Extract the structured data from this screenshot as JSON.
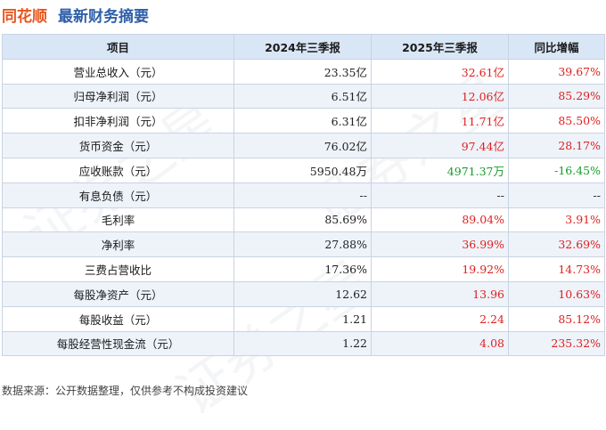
{
  "header": {
    "brand": "同花顺",
    "title": "最新财务摘要"
  },
  "table": {
    "columns": [
      "项目",
      "2024年三季报",
      "2025年三季报",
      "同比增幅"
    ],
    "rows": [
      {
        "item": "营业总收入（元）",
        "v2024": "23.35亿",
        "v2025": "32.61亿",
        "yoy": "39.67%",
        "trend": "up"
      },
      {
        "item": "归母净利润（元）",
        "v2024": "6.51亿",
        "v2025": "12.06亿",
        "yoy": "85.29%",
        "trend": "up"
      },
      {
        "item": "扣非净利润（元）",
        "v2024": "6.31亿",
        "v2025": "11.71亿",
        "yoy": "85.50%",
        "trend": "up"
      },
      {
        "item": "货币资金（元）",
        "v2024": "76.02亿",
        "v2025": "97.44亿",
        "yoy": "28.17%",
        "trend": "up"
      },
      {
        "item": "应收账款（元）",
        "v2024": "5950.48万",
        "v2025": "4971.37万",
        "yoy": "-16.45%",
        "trend": "down"
      },
      {
        "item": "有息负债（元）",
        "v2024": "--",
        "v2025": "--",
        "yoy": "--",
        "trend": "flat"
      },
      {
        "item": "毛利率",
        "v2024": "85.69%",
        "v2025": "89.04%",
        "yoy": "3.91%",
        "trend": "up"
      },
      {
        "item": "净利率",
        "v2024": "27.88%",
        "v2025": "36.99%",
        "yoy": "32.69%",
        "trend": "up"
      },
      {
        "item": "三费占营收比",
        "v2024": "17.36%",
        "v2025": "19.92%",
        "yoy": "14.73%",
        "trend": "up"
      },
      {
        "item": "每股净资产（元）",
        "v2024": "12.62",
        "v2025": "13.96",
        "yoy": "10.63%",
        "trend": "up"
      },
      {
        "item": "每股收益（元）",
        "v2024": "1.21",
        "v2025": "2.24",
        "yoy": "85.12%",
        "trend": "up"
      },
      {
        "item": "每股经营性现金流（元）",
        "v2024": "1.22",
        "v2025": "4.08",
        "yoy": "235.32%",
        "trend": "up"
      }
    ]
  },
  "footer": {
    "text": "数据来源：公开数据整理，仅供参考不构成投资建议"
  },
  "watermark": {
    "text": "证券之星"
  },
  "colors": {
    "up": "#e02020",
    "down": "#1a9a2a",
    "header_bg": "#d9e6f6",
    "brand": "#e8541c",
    "title": "#2e5fa8"
  }
}
